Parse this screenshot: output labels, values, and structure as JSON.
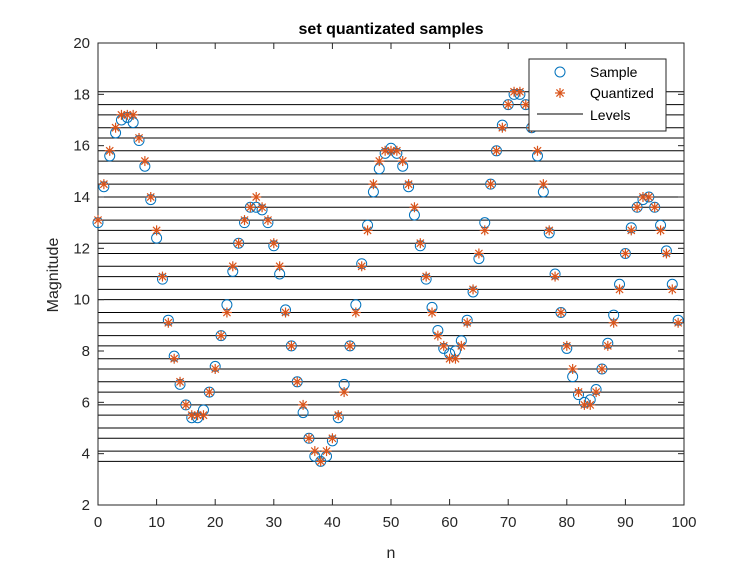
{
  "chart_data": {
    "type": "scatter",
    "title": "set quantizated samples",
    "xlabel": "n",
    "ylabel": "Magnitude",
    "xlim": [
      0,
      100
    ],
    "ylim": [
      2,
      20
    ],
    "xticks": [
      "0",
      "10",
      "20",
      "30",
      "40",
      "50",
      "60",
      "70",
      "80",
      "90",
      "100"
    ],
    "yticks": [
      "2",
      "4",
      "6",
      "8",
      "10",
      "12",
      "14",
      "16",
      "18",
      "20"
    ],
    "legend_position": "top-right",
    "legend": [
      "Sample",
      "Quantized",
      "Levels"
    ],
    "colors": {
      "sample": "#0072BD",
      "quantized": "#D95319",
      "levels": "#000000"
    },
    "levels": [
      3.7,
      4.1,
      4.6,
      5.0,
      5.5,
      5.9,
      6.4,
      6.8,
      7.3,
      7.7,
      8.2,
      8.6,
      9.1,
      9.5,
      10.0,
      10.4,
      10.9,
      11.3,
      11.8,
      12.2,
      12.7,
      13.1,
      13.6,
      14.0,
      14.5,
      14.9,
      15.4,
      15.8,
      16.3,
      16.7,
      17.2,
      17.6,
      18.1
    ],
    "series": [
      {
        "name": "Sample",
        "marker": "circle",
        "x": [
          0,
          1,
          2,
          3,
          4,
          5,
          6,
          7,
          8,
          9,
          10,
          11,
          12,
          13,
          14,
          15,
          16,
          17,
          18,
          19,
          20,
          21,
          22,
          23,
          24,
          25,
          26,
          27,
          28,
          29,
          30,
          31,
          32,
          33,
          34,
          35,
          36,
          37,
          38,
          39,
          40,
          41,
          42,
          43,
          44,
          45,
          46,
          47,
          48,
          49,
          50,
          51,
          52,
          53,
          54,
          55,
          56,
          57,
          58,
          59,
          60,
          61,
          62,
          63,
          64,
          65,
          66,
          67,
          68,
          69,
          70,
          71,
          72,
          73,
          74,
          75,
          76,
          77,
          78,
          79,
          80,
          81,
          82,
          83,
          84,
          85,
          86,
          87,
          88,
          89,
          90,
          91,
          92,
          93,
          94,
          95,
          96,
          97,
          98,
          99
        ],
        "y": [
          13.0,
          14.4,
          15.6,
          16.5,
          17.0,
          17.1,
          16.9,
          16.2,
          15.2,
          13.9,
          12.4,
          10.8,
          9.2,
          7.8,
          6.7,
          5.9,
          5.4,
          5.4,
          5.7,
          6.4,
          7.4,
          8.6,
          9.8,
          11.1,
          12.2,
          13.0,
          13.6,
          13.6,
          13.5,
          13.0,
          12.1,
          11.0,
          9.6,
          8.2,
          6.8,
          5.6,
          4.6,
          3.9,
          3.7,
          3.9,
          4.5,
          5.4,
          6.7,
          8.2,
          9.8,
          11.4,
          12.9,
          14.2,
          15.1,
          15.7,
          15.9,
          15.7,
          15.2,
          14.4,
          13.3,
          12.1,
          10.8,
          9.7,
          8.8,
          8.1,
          7.9,
          8.0,
          8.4,
          9.2,
          10.3,
          11.6,
          13.0,
          14.5,
          15.8,
          16.8,
          17.6,
          18.0,
          18.0,
          17.6,
          16.7,
          15.6,
          14.2,
          12.6,
          11.0,
          9.5,
          8.1,
          7.0,
          6.3,
          6.0,
          6.1,
          6.5,
          7.3,
          8.3,
          9.4,
          10.6,
          11.8,
          12.8,
          13.6,
          13.9,
          14.0,
          13.6,
          12.9,
          11.9,
          10.6,
          9.2
        ]
      },
      {
        "name": "Quantized",
        "marker": "asterisk",
        "x": [
          0,
          1,
          2,
          3,
          4,
          5,
          6,
          7,
          8,
          9,
          10,
          11,
          12,
          13,
          14,
          15,
          16,
          17,
          18,
          19,
          20,
          21,
          22,
          23,
          24,
          25,
          26,
          27,
          28,
          29,
          30,
          31,
          32,
          33,
          34,
          35,
          36,
          37,
          38,
          39,
          40,
          41,
          42,
          43,
          44,
          45,
          46,
          47,
          48,
          49,
          50,
          51,
          52,
          53,
          54,
          55,
          56,
          57,
          58,
          59,
          60,
          61,
          62,
          63,
          64,
          65,
          66,
          67,
          68,
          69,
          70,
          71,
          72,
          73,
          74,
          75,
          76,
          77,
          78,
          79,
          80,
          81,
          82,
          83,
          84,
          85,
          86,
          87,
          88,
          89,
          90,
          91,
          92,
          93,
          94,
          95,
          96,
          97,
          98,
          99
        ],
        "y": [
          13.1,
          14.5,
          15.8,
          16.7,
          17.2,
          17.2,
          17.2,
          16.3,
          15.4,
          14.0,
          12.7,
          10.9,
          9.1,
          7.7,
          6.8,
          5.9,
          5.5,
          5.5,
          5.5,
          6.4,
          7.3,
          8.6,
          9.5,
          11.3,
          12.2,
          13.1,
          13.6,
          14.0,
          13.6,
          13.1,
          12.2,
          11.3,
          9.5,
          8.2,
          6.8,
          5.9,
          4.6,
          4.1,
          3.7,
          4.1,
          4.6,
          5.5,
          6.4,
          8.2,
          9.5,
          11.3,
          12.7,
          14.5,
          15.4,
          15.8,
          15.8,
          15.8,
          15.4,
          14.5,
          13.6,
          12.2,
          10.9,
          9.5,
          8.6,
          8.2,
          7.7,
          7.7,
          8.2,
          9.1,
          10.4,
          11.8,
          12.7,
          14.5,
          15.8,
          16.7,
          17.6,
          18.1,
          18.1,
          17.6,
          16.7,
          15.8,
          14.5,
          12.7,
          10.9,
          9.5,
          8.2,
          7.3,
          6.4,
          5.9,
          5.9,
          6.4,
          7.3,
          8.2,
          9.1,
          10.4,
          11.8,
          12.7,
          13.6,
          14.0,
          14.0,
          13.6,
          12.7,
          11.8,
          10.4,
          9.1
        ]
      }
    ]
  }
}
